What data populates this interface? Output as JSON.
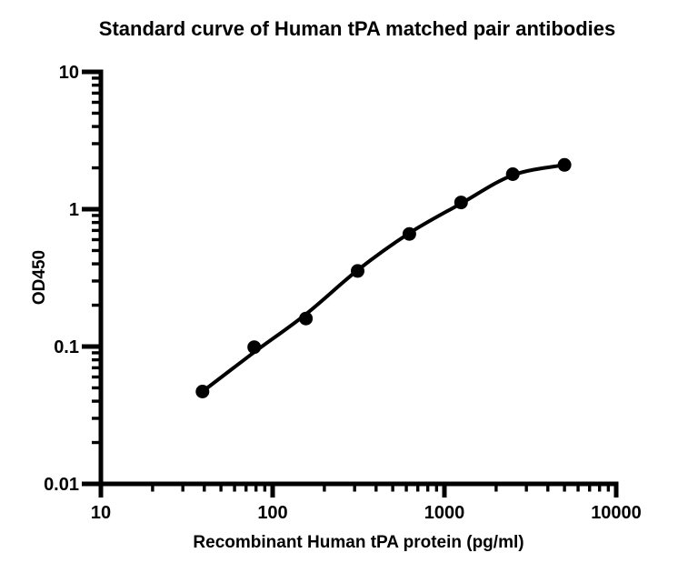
{
  "chart_data": {
    "type": "scatter",
    "title": "Standard curve of Human tPA matched pair antibodies",
    "xlabel": "Recombinant Human tPA protein (pg/ml)",
    "ylabel": "OD450",
    "x_scale": "log10",
    "y_scale": "log10",
    "xlim": [
      10,
      10000
    ],
    "ylim": [
      0.01,
      10
    ],
    "x_major_ticks": [
      10,
      100,
      1000,
      10000
    ],
    "x_tick_labels": [
      "10",
      "100",
      "1000",
      "10000"
    ],
    "y_major_ticks": [
      0.01,
      0.1,
      1,
      10
    ],
    "y_tick_labels": [
      "0.01",
      "0.1",
      "1",
      "10"
    ],
    "minor_log_ticks": true,
    "grid": false,
    "legend": null,
    "colors": {
      "axis": "#000000",
      "marker": "#000000",
      "curve": "#000000"
    },
    "series": [
      {
        "marker": "filled-circle",
        "x": [
          39.06,
          78.13,
          156.25,
          312.5,
          625,
          1250,
          2500,
          5000
        ],
        "od450": [
          0.047,
          0.099,
          0.16,
          0.355,
          0.66,
          1.12,
          1.8,
          2.1
        ],
        "fit_curve_od450": [
          0.047,
          0.091,
          0.172,
          0.36,
          0.67,
          1.1,
          1.77,
          2.1
        ]
      }
    ]
  }
}
